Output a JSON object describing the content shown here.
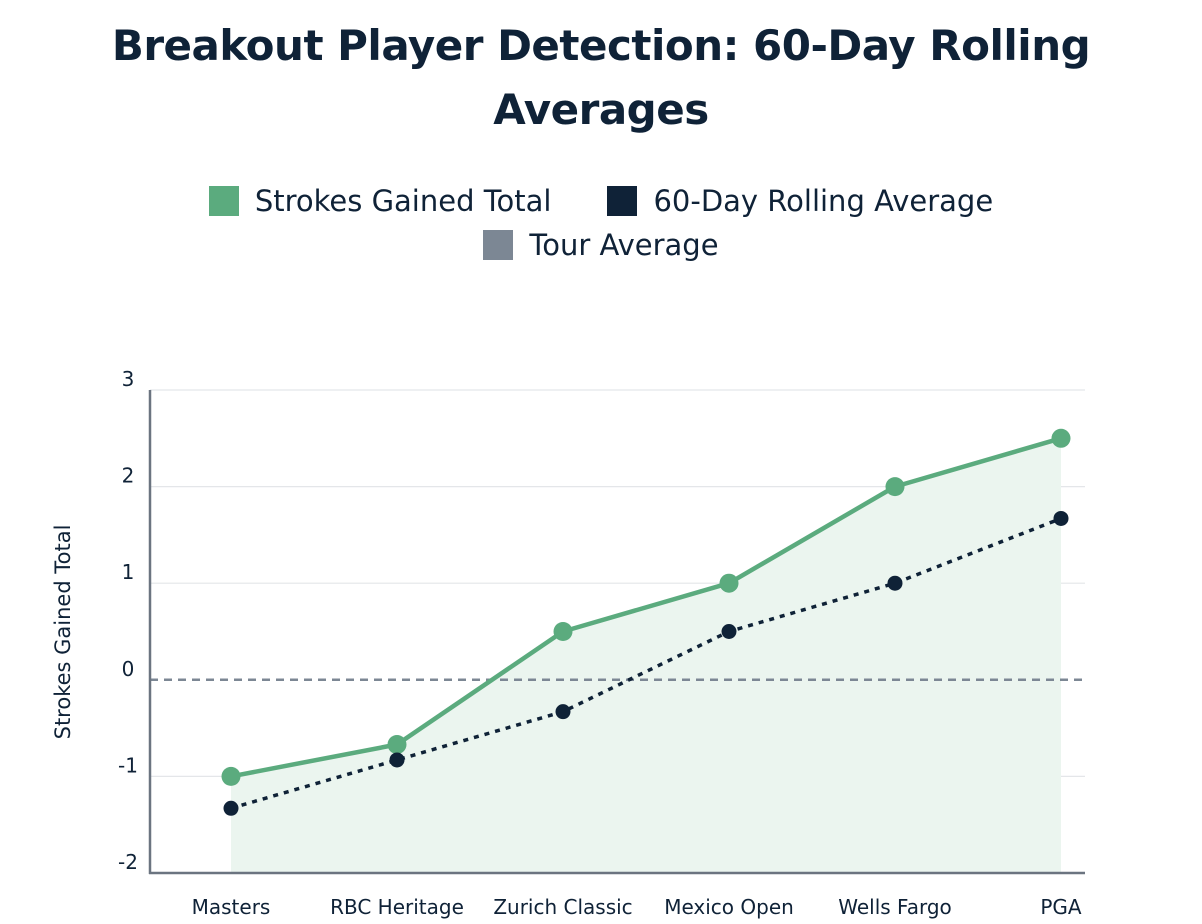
{
  "colors": {
    "strokes_gained": "#5bab7e",
    "strokes_gained_fill": "#ebf5ef",
    "rolling_average": "#0f2237",
    "tour_average": "#7c8794",
    "axis": "#6b7480",
    "grid": "#e4e6e9"
  },
  "chart_data": {
    "type": "line",
    "title": "Breakout Player Detection: 60-Day Rolling Averages",
    "xlabel": "",
    "ylabel": "Strokes Gained Total",
    "ylim": [
      -2,
      3
    ],
    "yticks": [
      3,
      2,
      1,
      0,
      -1,
      -2
    ],
    "categories": [
      "Masters",
      "RBC Heritage",
      "Zurich Classic",
      "Mexico Open",
      "Wells Fargo",
      "PGA"
    ],
    "series": [
      {
        "name": "Strokes Gained Total",
        "style": "solid",
        "fill": true,
        "values": [
          -1.0,
          -0.67,
          0.5,
          1.0,
          2.0,
          2.5
        ]
      },
      {
        "name": "60-Day Rolling Average",
        "style": "dotted",
        "values": [
          -1.33,
          -0.83,
          -0.33,
          0.5,
          1.0,
          1.67
        ]
      },
      {
        "name": "Tour Average",
        "style": "dashed",
        "values": [
          0,
          0,
          0,
          0,
          0,
          0
        ]
      }
    ],
    "legend": {
      "position": "top-center",
      "items": [
        "Strokes Gained Total",
        "60-Day Rolling Average",
        "Tour Average"
      ]
    }
  }
}
